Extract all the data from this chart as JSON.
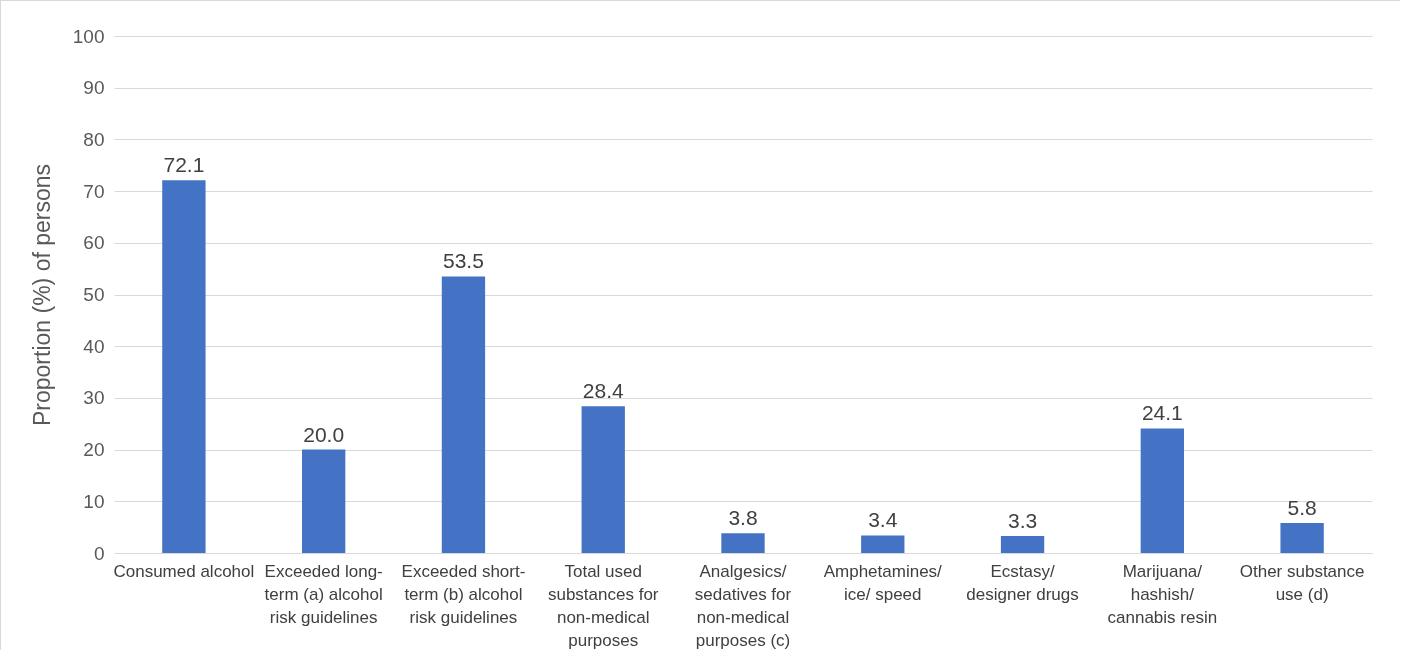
{
  "chart_data": {
    "type": "bar",
    "categories": [
      "Consumed alcohol",
      "Exceeded long-term (a) alcohol risk guidelines",
      "Exceeded short-term (b) alcohol risk guidelines",
      "Total used substances for non-medical purposes",
      "Analgesics/ sedatives for non-medical purposes (c)",
      "Amphetamines/ ice/ speed",
      "Ecstasy/ designer drugs",
      "Marijuana/ hashish/ cannabis resin",
      "Other substance use (d)"
    ],
    "values": [
      72.1,
      20.0,
      53.5,
      28.4,
      3.8,
      3.4,
      3.3,
      24.1,
      5.8
    ],
    "value_labels": [
      "72.1",
      "20.0",
      "53.5",
      "28.4",
      "3.8",
      "3.4",
      "3.3",
      "24.1",
      "5.8"
    ],
    "color": "#4472c4",
    "ylabel": "Proportion (%) of persons",
    "ylim": [
      0,
      100
    ],
    "yticks": [
      0,
      10,
      20,
      30,
      40,
      50,
      60,
      70,
      80,
      90,
      100
    ],
    "grid": "y"
  }
}
